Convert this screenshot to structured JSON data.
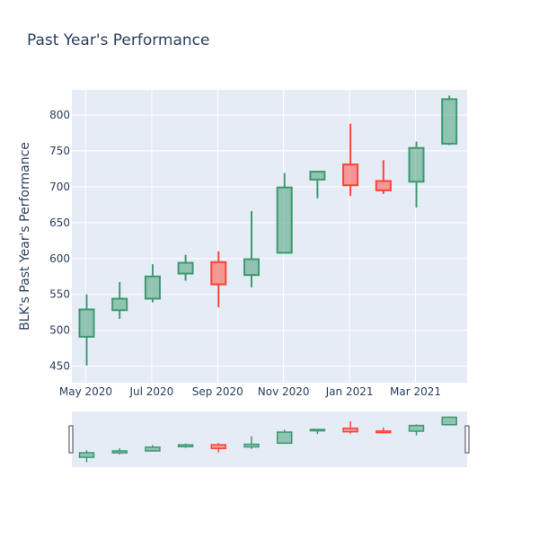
{
  "chart_data": {
    "type": "candlestick",
    "title": "Past Year's Performance",
    "xlabel": "",
    "ylabel": "BLK's Past Year's Performance",
    "x_tick_labels": [
      "May 2020",
      "Jul 2020",
      "Sep 2020",
      "Nov 2020",
      "Jan 2021",
      "Mar 2021"
    ],
    "y_ticks": [
      450,
      500,
      550,
      600,
      650,
      700,
      750,
      800
    ],
    "ylim": [
      427,
      835
    ],
    "grid": true,
    "rangeslider": true,
    "increasing_color": "#3d9970",
    "decreasing_color": "#ff4136",
    "plot_background": "#e5ecf6",
    "candles": [
      {
        "month": "2020-05",
        "open": 491,
        "high": 550,
        "low": 451,
        "close": 529
      },
      {
        "month": "2020-06",
        "open": 528,
        "high": 567,
        "low": 516,
        "close": 544
      },
      {
        "month": "2020-07",
        "open": 544,
        "high": 592,
        "low": 539,
        "close": 575
      },
      {
        "month": "2020-08",
        "open": 579,
        "high": 605,
        "low": 569,
        "close": 594
      },
      {
        "month": "2020-09",
        "open": 595,
        "high": 610,
        "low": 532,
        "close": 564
      },
      {
        "month": "2020-10",
        "open": 577,
        "high": 666,
        "low": 560,
        "close": 599
      },
      {
        "month": "2020-11",
        "open": 608,
        "high": 719,
        "low": 608,
        "close": 699
      },
      {
        "month": "2020-12",
        "open": 710,
        "high": 722,
        "low": 684,
        "close": 721
      },
      {
        "month": "2021-01",
        "open": 731,
        "high": 788,
        "low": 687,
        "close": 702
      },
      {
        "month": "2021-02",
        "open": 708,
        "high": 737,
        "low": 690,
        "close": 695
      },
      {
        "month": "2021-03",
        "open": 707,
        "high": 763,
        "low": 671,
        "close": 754
      },
      {
        "month": "2021-04",
        "open": 760,
        "high": 827,
        "low": 758,
        "close": 822
      }
    ]
  }
}
